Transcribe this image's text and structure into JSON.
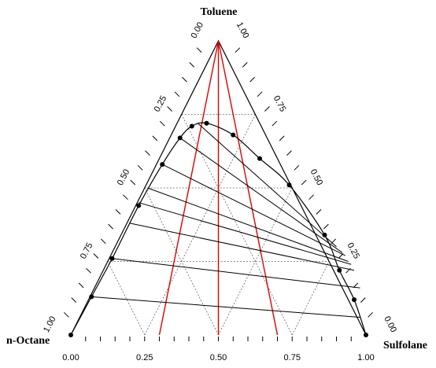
{
  "chart_data": {
    "type": "ternary",
    "title": "",
    "vertices": {
      "top": "Toluene",
      "bottom_left": "n-Octane",
      "bottom_right": "Sulfolane"
    },
    "axes": {
      "bottom": {
        "ticks": [
          0.0,
          0.25,
          0.5,
          0.75,
          1.0
        ],
        "labels": [
          "0.00",
          "0.25",
          "0.50",
          "0.75",
          "1.00"
        ]
      },
      "left": {
        "ticks": [
          0.0,
          0.25,
          0.5,
          0.75,
          1.0
        ],
        "labels": [
          "0.00",
          "0.25",
          "0.50",
          "0.75",
          "1.00"
        ]
      },
      "right": {
        "ticks": [
          1.0,
          0.75,
          0.5,
          0.25,
          0.0
        ],
        "labels": [
          "1.00",
          "0.75",
          "0.50",
          "0.25",
          "0.00"
        ]
      }
    },
    "grid": "dotted at 0.25 intervals",
    "binodal_points": [
      [
        0.0,
        0.0
      ],
      [
        0.07,
        0.13
      ],
      [
        0.14,
        0.26
      ],
      [
        0.23,
        0.44
      ],
      [
        0.31,
        0.58
      ],
      [
        0.37,
        0.67
      ],
      [
        0.41,
        0.71
      ],
      [
        0.46,
        0.72
      ],
      [
        0.55,
        0.68
      ],
      [
        0.64,
        0.6
      ],
      [
        0.74,
        0.51
      ],
      [
        0.86,
        0.34
      ],
      [
        0.91,
        0.22
      ],
      [
        0.96,
        0.12
      ],
      [
        1.0,
        0.0
      ]
    ],
    "tie_lines": [
      [
        [
          0.07,
          0.13
        ],
        [
          0.98,
          0.06
        ]
      ],
      [
        [
          0.14,
          0.26
        ],
        [
          0.98,
          0.16
        ]
      ],
      [
        [
          0.2,
          0.38
        ],
        [
          0.96,
          0.22
        ]
      ],
      [
        [
          0.23,
          0.45
        ],
        [
          0.95,
          0.24
        ]
      ],
      [
        [
          0.26,
          0.5
        ],
        [
          0.94,
          0.25
        ]
      ],
      [
        [
          0.31,
          0.58
        ],
        [
          0.93,
          0.27
        ]
      ],
      [
        [
          0.37,
          0.67
        ],
        [
          0.92,
          0.28
        ]
      ],
      [
        [
          0.43,
          0.72
        ],
        [
          0.9,
          0.3
        ]
      ]
    ],
    "red_lines": [
      [
        [
          0.5,
          1.0
        ],
        [
          0.3,
          0.0
        ]
      ],
      [
        [
          0.5,
          1.0
        ],
        [
          0.5,
          0.0
        ]
      ],
      [
        [
          0.5,
          1.0
        ],
        [
          0.7,
          0.0
        ]
      ]
    ]
  }
}
